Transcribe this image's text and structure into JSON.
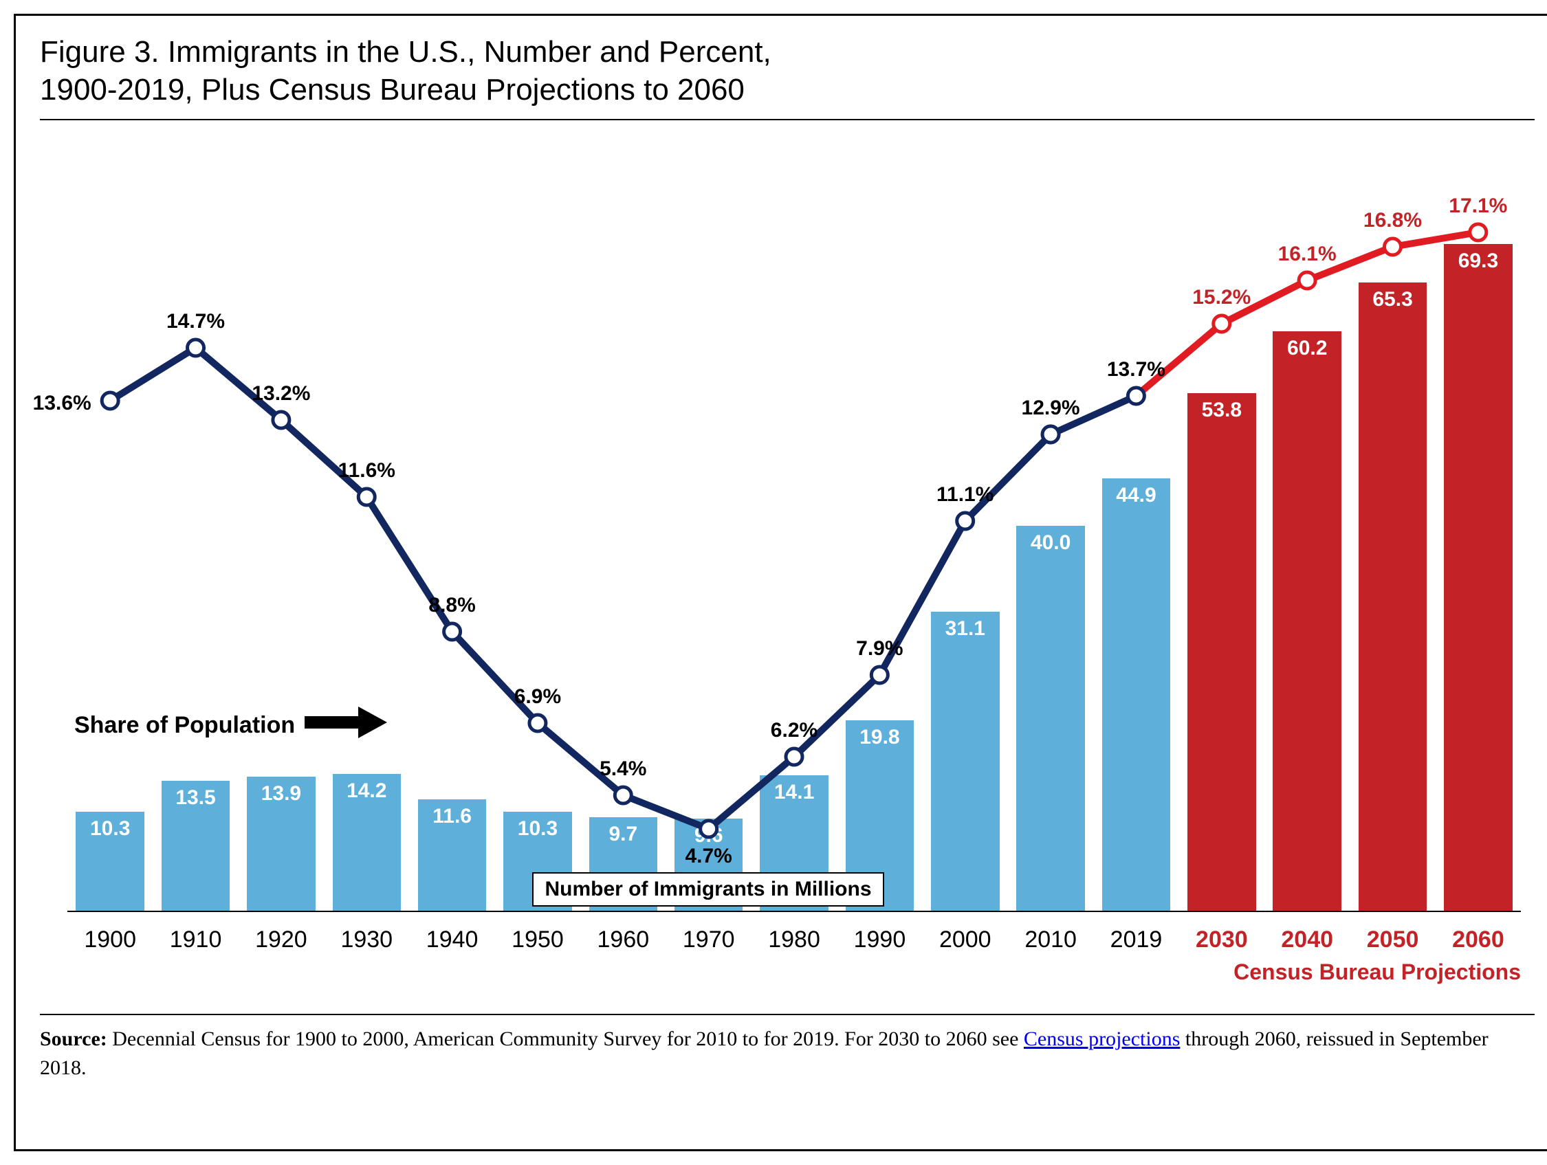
{
  "title_line1": "Figure 3. Immigrants in the U.S., Number and Percent,",
  "title_line2": "1900-2019, Plus Census Bureau Projections to 2060",
  "chart": {
    "type": "bar+line",
    "y_max_bar": 80,
    "historical_bar_color": "#5eb0db",
    "projection_bar_color": "#c32227",
    "historical_line_color": "#12275f",
    "projection_line_color": "#e11b22",
    "marker_fill": "#ffffff",
    "marker_stroke_hist": "#12275f",
    "marker_stroke_proj": "#e11b22",
    "line_width": 10,
    "marker_radius": 12,
    "background": "#ffffff",
    "x_label_color_hist": "#000000",
    "x_label_color_proj": "#c32227",
    "bar_label_fontsize": 30,
    "pct_label_fontsize": 30,
    "x_label_fontsize": 34,
    "data": [
      {
        "year": "1900",
        "bar": 10.3,
        "pct": 13.6,
        "proj": false,
        "pct_pos": "left"
      },
      {
        "year": "1910",
        "bar": 13.5,
        "pct": 14.7,
        "proj": false,
        "pct_pos": "above"
      },
      {
        "year": "1920",
        "bar": 13.9,
        "pct": 13.2,
        "proj": false,
        "pct_pos": "above"
      },
      {
        "year": "1930",
        "bar": 14.2,
        "pct": 11.6,
        "proj": false,
        "pct_pos": "above"
      },
      {
        "year": "1940",
        "bar": 11.6,
        "pct": 8.8,
        "proj": false,
        "pct_pos": "above"
      },
      {
        "year": "1950",
        "bar": 10.3,
        "pct": 6.9,
        "proj": false,
        "pct_pos": "above"
      },
      {
        "year": "1960",
        "bar": 9.7,
        "pct": 5.4,
        "proj": false,
        "pct_pos": "above"
      },
      {
        "year": "1970",
        "bar": 9.6,
        "pct": 4.7,
        "proj": false,
        "pct_pos": "below"
      },
      {
        "year": "1980",
        "bar": 14.1,
        "pct": 6.2,
        "proj": false,
        "pct_pos": "above"
      },
      {
        "year": "1990",
        "bar": 19.8,
        "pct": 7.9,
        "proj": false,
        "pct_pos": "above"
      },
      {
        "year": "2000",
        "bar": 31.1,
        "pct": 11.1,
        "proj": false,
        "pct_pos": "above"
      },
      {
        "year": "2010",
        "bar": 40.0,
        "pct": 12.9,
        "proj": false,
        "pct_pos": "above"
      },
      {
        "year": "2019",
        "bar": 44.9,
        "pct": 13.7,
        "proj": false,
        "pct_pos": "above"
      },
      {
        "year": "2030",
        "bar": 53.8,
        "pct": 15.2,
        "proj": true,
        "pct_pos": "above"
      },
      {
        "year": "2040",
        "bar": 60.2,
        "pct": 16.1,
        "proj": true,
        "pct_pos": "above"
      },
      {
        "year": "2050",
        "bar": 65.3,
        "pct": 16.8,
        "proj": true,
        "pct_pos": "above"
      },
      {
        "year": "2060",
        "bar": 69.3,
        "pct": 17.1,
        "proj": true,
        "pct_pos": "above"
      }
    ],
    "pct_scale_min": 3,
    "pct_scale_max": 19,
    "number_caption": "Number of Immigrants in Millions",
    "share_caption": "Share of Population",
    "projection_caption": "Census Bureau Projections"
  },
  "footnote": {
    "prefix_bold": "Source:",
    "text1": " Decennial Census for 1900 to 2000, American Community Survey for 2010 to for 2019. For 2030 to 2060 see ",
    "link1": "Census projections",
    "text2": " through 2060, reissued in September 2018."
  }
}
